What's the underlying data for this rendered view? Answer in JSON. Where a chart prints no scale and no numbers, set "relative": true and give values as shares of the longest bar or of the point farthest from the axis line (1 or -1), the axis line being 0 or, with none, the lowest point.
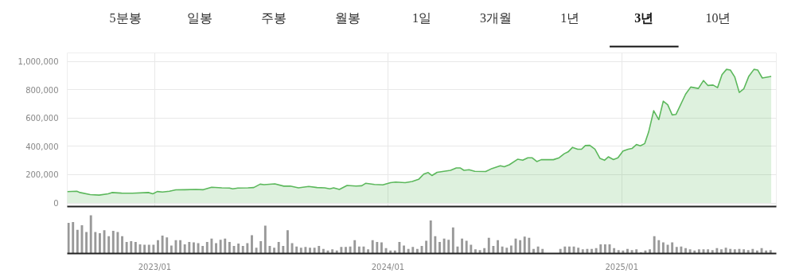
{
  "chart_data": [
    {
      "type": "other",
      "annotations": [
        "5분봉",
        "일봉",
        "주봉",
        "월봉",
        "1일",
        "3개월",
        "1년",
        "3년",
        "10년"
      ]
    },
    {
      "type": "area",
      "xlim": [
        "2022-08-17",
        "2025-08-31"
      ],
      "xticks": [
        {
          "value": "2023-01-01",
          "label": null
        },
        {
          "value": "2024-01-01",
          "label": null
        },
        {
          "value": "2025-01-01",
          "label": null
        }
      ],
      "ylim": [
        -25000,
        1060000
      ],
      "yticks": [
        0,
        {
          "value": 200000,
          "label": "200,000"
        },
        {
          "value": 400000,
          "label": "400,000"
        },
        {
          "value": 600000,
          "label": "600,000"
        },
        {
          "value": 800000,
          "label": "800,000"
        },
        {
          "value": 1000000,
          "label": "1,000,000"
        }
      ],
      "grid": true,
      "tick_labels": "y",
      "series": [
        {
          "color": "#5cb85c",
          "x": [
            "2022-08-17",
            "2022-09-01",
            "2022-09-06",
            "2022-09-22",
            "2022-10-06",
            "2022-10-20",
            "2022-10-26",
            "2022-11-10",
            "2022-11-27",
            "2022-12-22",
            "2022-12-29",
            "2023-01-05",
            "2023-01-13",
            "2023-01-24",
            "2023-02-03",
            "2023-02-17",
            "2023-03-06",
            "2023-03-18",
            "2023-03-31",
            "2023-04-16",
            "2023-04-28",
            "2023-05-03",
            "2023-05-11",
            "2023-05-27",
            "2023-06-05",
            "2023-06-15",
            "2023-06-21",
            "2023-07-08",
            "2023-07-22",
            "2023-08-01",
            "2023-08-14",
            "2023-08-30",
            "2023-09-12",
            "2023-09-24",
            "2023-10-02",
            "2023-10-08",
            "2023-10-17",
            "2023-10-29",
            "2023-11-12",
            "2023-11-21",
            "2023-11-27",
            "2023-12-11",
            "2023-12-24",
            "2024-01-05",
            "2024-01-13",
            "2024-01-28",
            "2024-02-08",
            "2024-02-18",
            "2024-02-26",
            "2024-03-04",
            "2024-03-10",
            "2024-03-18",
            "2024-04-08",
            "2024-04-17",
            "2024-04-23",
            "2024-04-29",
            "2024-05-07",
            "2024-05-16",
            "2024-06-02",
            "2024-06-12",
            "2024-06-25",
            "2024-07-01",
            "2024-07-09",
            "2024-07-22",
            "2024-07-30",
            "2024-08-07",
            "2024-08-14",
            "2024-08-21",
            "2024-08-28",
            "2024-09-16",
            "2024-09-25",
            "2024-10-03",
            "2024-10-09",
            "2024-10-16",
            "2024-10-24",
            "2024-10-30",
            "2024-11-05",
            "2024-11-12",
            "2024-11-20",
            "2024-11-28",
            "2024-12-05",
            "2024-12-11",
            "2024-12-19",
            "2024-12-26",
            "2025-01-03",
            "2025-01-11",
            "2025-01-17",
            "2025-01-24",
            "2025-01-30",
            "2025-02-06",
            "2025-02-12",
            "2025-02-20",
            "2025-02-28",
            "2025-03-07",
            "2025-03-14",
            "2025-03-21",
            "2025-03-27",
            "2025-04-11",
            "2025-04-19",
            "2025-05-01",
            "2025-05-09",
            "2025-05-16",
            "2025-05-24",
            "2025-05-31",
            "2025-06-07",
            "2025-06-14",
            "2025-06-20",
            "2025-06-27",
            "2025-07-04",
            "2025-07-11",
            "2025-07-19",
            "2025-07-27",
            "2025-08-02",
            "2025-08-09",
            "2025-08-23"
          ],
          "values": [
            80000,
            83000,
            74000,
            59000,
            56000,
            65000,
            74000,
            70000,
            69000,
            74000,
            65000,
            81000,
            78000,
            83000,
            93000,
            94000,
            96000,
            94000,
            111000,
            107000,
            106000,
            100000,
            106000,
            107000,
            109000,
            133000,
            130000,
            135000,
            119000,
            120000,
            107000,
            117000,
            109000,
            107000,
            100000,
            107000,
            96000,
            124000,
            120000,
            122000,
            139000,
            131000,
            128000,
            144000,
            148000,
            144000,
            152000,
            167000,
            204000,
            215000,
            194000,
            217000,
            231000,
            248000,
            248000,
            231000,
            235000,
            224000,
            222000,
            244000,
            263000,
            256000,
            270000,
            309000,
            302000,
            319000,
            319000,
            293000,
            306000,
            306000,
            320000,
            348000,
            361000,
            393000,
            380000,
            380000,
            406000,
            407000,
            380000,
            315000,
            302000,
            326000,
            307000,
            319000,
            367000,
            380000,
            385000,
            413000,
            404000,
            420000,
            500000,
            652000,
            589000,
            719000,
            694000,
            622000,
            626000,
            769000,
            819000,
            809000,
            865000,
            830000,
            833000,
            815000,
            907000,
            944000,
            939000,
            889000,
            781000,
            806000,
            896000,
            944000,
            939000,
            883000,
            894000
          ]
        }
      ]
    },
    {
      "type": "bar",
      "relative": true,
      "tick_labels": "x",
      "xlim": [
        "2022-08-17",
        "2025-08-31"
      ],
      "xticks": [
        {
          "value": "2023-01-01",
          "label": "2023/01"
        },
        {
          "value": "2024-01-01",
          "label": "2024/01"
        },
        {
          "value": "2025-01-01",
          "label": "2025/01"
        }
      ],
      "color": "#999999",
      "x": [
        "2022-08-19",
        "2022-08-26",
        "2022-09-02",
        "2022-09-09",
        "2022-09-16",
        "2022-09-23",
        "2022-09-30",
        "2022-10-07",
        "2022-10-14",
        "2022-10-21",
        "2022-10-28",
        "2022-11-04",
        "2022-11-11",
        "2022-11-18",
        "2022-11-25",
        "2022-12-02",
        "2022-12-09",
        "2022-12-16",
        "2022-12-23",
        "2022-12-30",
        "2023-01-06",
        "2023-01-13",
        "2023-01-20",
        "2023-01-27",
        "2023-02-03",
        "2023-02-10",
        "2023-02-17",
        "2023-02-24",
        "2023-03-03",
        "2023-03-10",
        "2023-03-17",
        "2023-03-24",
        "2023-03-31",
        "2023-04-07",
        "2023-04-14",
        "2023-04-21",
        "2023-04-28",
        "2023-05-05",
        "2023-05-12",
        "2023-05-19",
        "2023-05-26",
        "2023-06-02",
        "2023-06-09",
        "2023-06-16",
        "2023-06-23",
        "2023-06-30",
        "2023-07-07",
        "2023-07-14",
        "2023-07-21",
        "2023-07-28",
        "2023-08-04",
        "2023-08-11",
        "2023-08-18",
        "2023-08-25",
        "2023-09-01",
        "2023-09-08",
        "2023-09-15",
        "2023-09-22",
        "2023-09-29",
        "2023-10-06",
        "2023-10-13",
        "2023-10-20",
        "2023-10-27",
        "2023-11-03",
        "2023-11-10",
        "2023-11-17",
        "2023-11-24",
        "2023-12-01",
        "2023-12-08",
        "2023-12-15",
        "2023-12-22",
        "2023-12-29",
        "2024-01-05",
        "2024-01-12",
        "2024-01-19",
        "2024-01-26",
        "2024-02-02",
        "2024-02-09",
        "2024-02-16",
        "2024-02-23",
        "2024-03-01",
        "2024-03-08",
        "2024-03-15",
        "2024-03-22",
        "2024-03-29",
        "2024-04-05",
        "2024-04-12",
        "2024-04-19",
        "2024-04-26",
        "2024-05-03",
        "2024-05-10",
        "2024-05-17",
        "2024-05-24",
        "2024-05-31",
        "2024-06-07",
        "2024-06-14",
        "2024-06-21",
        "2024-06-28",
        "2024-07-05",
        "2024-07-12",
        "2024-07-19",
        "2024-07-26",
        "2024-08-02",
        "2024-08-09",
        "2024-08-16",
        "2024-08-23",
        "2024-08-30",
        "2024-09-06",
        "2024-09-13",
        "2024-09-20",
        "2024-09-27",
        "2024-10-04",
        "2024-10-11",
        "2024-10-18",
        "2024-10-25",
        "2024-11-01",
        "2024-11-08",
        "2024-11-15",
        "2024-11-22",
        "2024-11-29",
        "2024-12-06",
        "2024-12-13",
        "2024-12-20",
        "2024-12-27",
        "2025-01-03",
        "2025-01-10",
        "2025-01-17",
        "2025-01-24",
        "2025-01-31",
        "2025-02-07",
        "2025-02-14",
        "2025-02-21",
        "2025-02-28",
        "2025-03-07",
        "2025-03-14",
        "2025-03-21",
        "2025-03-28",
        "2025-04-04",
        "2025-04-11",
        "2025-04-18",
        "2025-04-25",
        "2025-05-02",
        "2025-05-09",
        "2025-05-16",
        "2025-05-23",
        "2025-05-30",
        "2025-06-06",
        "2025-06-13",
        "2025-06-20",
        "2025-06-27",
        "2025-07-04",
        "2025-07-11",
        "2025-07-18",
        "2025-07-25",
        "2025-08-01",
        "2025-08-08",
        "2025-08-15",
        "2025-08-22"
      ],
      "values": [
        0.8,
        0.82,
        0.62,
        0.74,
        0.56,
        1,
        0.56,
        0.53,
        0.61,
        0.45,
        0.59,
        0.56,
        0.45,
        0.3,
        0.32,
        0.3,
        0.24,
        0.23,
        0.23,
        0.23,
        0.35,
        0.47,
        0.42,
        0.21,
        0.35,
        0.35,
        0.24,
        0.3,
        0.29,
        0.27,
        0.2,
        0.3,
        0.39,
        0.27,
        0.36,
        0.39,
        0.3,
        0.2,
        0.26,
        0.2,
        0.27,
        0.48,
        0.15,
        0.32,
        0.73,
        0.2,
        0.15,
        0.3,
        0.2,
        0.61,
        0.27,
        0.18,
        0.15,
        0.17,
        0.15,
        0.15,
        0.2,
        0.12,
        0.08,
        0.11,
        0.08,
        0.17,
        0.17,
        0.18,
        0.35,
        0.18,
        0.18,
        0.11,
        0.35,
        0.3,
        0.29,
        0.14,
        0.08,
        0.08,
        0.3,
        0.21,
        0.12,
        0.17,
        0.12,
        0.2,
        0.33,
        0.86,
        0.45,
        0.3,
        0.39,
        0.36,
        0.68,
        0.18,
        0.39,
        0.33,
        0.23,
        0.11,
        0.09,
        0.14,
        0.41,
        0.2,
        0.35,
        0.18,
        0.15,
        0.21,
        0.39,
        0.35,
        0.44,
        0.41,
        0.12,
        0.18,
        0.12,
        null,
        null,
        null,
        0.12,
        0.18,
        0.18,
        0.18,
        0.15,
        0.11,
        0.12,
        0.12,
        0.14,
        0.24,
        0.24,
        0.24,
        0.14,
        0.09,
        0.08,
        0.12,
        0.09,
        0.11,
        0.03,
        0.08,
        0.11,
        0.45,
        0.35,
        0.29,
        0.23,
        0.29,
        0.17,
        0.18,
        0.14,
        0.11,
        0.08,
        0.11,
        0.11,
        0.11,
        0.09,
        0.14,
        0.11,
        0.15,
        0.12,
        0.11,
        0.12,
        0.11,
        0.09,
        0.12,
        0.08,
        0.14,
        0.08,
        0.09
      ]
    }
  ]
}
